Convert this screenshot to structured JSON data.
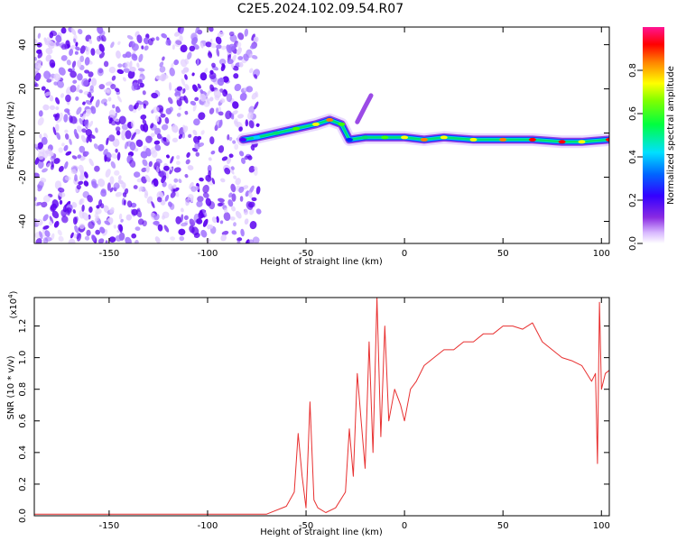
{
  "figure": {
    "title": "C2E5.2024.102.09.54.R07"
  },
  "chart_data": [
    {
      "type": "heatmap",
      "title": "",
      "xlabel": "Height of straight line (km)",
      "ylabel": "Frequency (Hz)",
      "xlim": [
        -188,
        104
      ],
      "ylim": [
        -50,
        48
      ],
      "x_ticks": [
        "-150",
        "-100",
        "-50",
        "0",
        "50",
        "100"
      ],
      "y_ticks": [
        "-40",
        "-20",
        "0",
        "20",
        "40"
      ],
      "colorbar": {
        "label": "Normalized spectral amplitude",
        "range": [
          0,
          1
        ],
        "ticks": [
          "0.0",
          "0.2",
          "0.4",
          "0.6",
          "0.8"
        ],
        "colormap": "rainbow"
      },
      "colormap_colors": [
        "#ffffff",
        "#e0c8ff",
        "#8a2be2",
        "#5500ff",
        "#0022ff",
        "#00d0ff",
        "#00e070",
        "#40ff00",
        "#ffff00",
        "#ff8000",
        "#ff0000",
        "#ff1493"
      ],
      "signal_ridge": [
        {
          "x": -82,
          "freq": -3,
          "amp": 0.3
        },
        {
          "x": -75,
          "freq": -2,
          "amp": 0.45
        },
        {
          "x": -65,
          "freq": 0,
          "amp": 0.55
        },
        {
          "x": -55,
          "freq": 2,
          "amp": 0.6
        },
        {
          "x": -45,
          "freq": 4,
          "amp": 0.7
        },
        {
          "x": -38,
          "freq": 6,
          "amp": 0.85
        },
        {
          "x": -32,
          "freq": 4,
          "amp": 0.6
        },
        {
          "x": -28,
          "freq": -3,
          "amp": 0.35
        },
        {
          "x": -20,
          "freq": -2,
          "amp": 0.5
        },
        {
          "x": -10,
          "freq": -2,
          "amp": 0.6
        },
        {
          "x": 0,
          "freq": -2,
          "amp": 0.75
        },
        {
          "x": 10,
          "freq": -3,
          "amp": 0.8
        },
        {
          "x": 20,
          "freq": -2,
          "amp": 0.75
        },
        {
          "x": 35,
          "freq": -3,
          "amp": 0.7
        },
        {
          "x": 50,
          "freq": -3,
          "amp": 0.85
        },
        {
          "x": 65,
          "freq": -3,
          "amp": 0.95
        },
        {
          "x": 80,
          "freq": -4,
          "amp": 0.9
        },
        {
          "x": 90,
          "freq": -4,
          "amp": 0.7
        },
        {
          "x": 104,
          "freq": -3,
          "amp": 0.9
        }
      ],
      "spur": [
        {
          "x": -24,
          "freq": 5
        },
        {
          "x": -20,
          "freq": 12
        },
        {
          "x": -17,
          "freq": 17
        }
      ],
      "noise_region": {
        "x_from": -188,
        "x_to": -80,
        "amp": 0.3
      }
    },
    {
      "type": "line",
      "title": "",
      "xlabel": "Height of straight line (km)",
      "ylabel": "SNR (10 * v/v)",
      "y_multiplier": "(x10",
      "y_multiplier_exp": "4",
      "y_multiplier_close": ")",
      "xlim": [
        -188,
        104
      ],
      "ylim": [
        0,
        1.38
      ],
      "x_ticks": [
        "-150",
        "-100",
        "-50",
        "0",
        "50",
        "100"
      ],
      "y_ticks": [
        "0.0",
        "0.2",
        "0.4",
        "0.6",
        "0.8",
        "1.0",
        "1.2"
      ],
      "series": [
        {
          "color": "#e83030",
          "x": [
            -188,
            -160,
            -130,
            -100,
            -80,
            -70,
            -60,
            -56,
            -54,
            -52,
            -50,
            -48,
            -46,
            -44,
            -40,
            -35,
            -30,
            -28,
            -26,
            -24,
            -22,
            -20,
            -18,
            -16,
            -14,
            -12,
            -10,
            -8,
            -5,
            -2,
            0,
            3,
            6,
            10,
            15,
            20,
            25,
            30,
            35,
            40,
            45,
            50,
            55,
            60,
            65,
            70,
            75,
            80,
            85,
            90,
            95,
            97,
            98,
            99,
            100,
            101,
            102,
            104
          ],
          "values": [
            0.01,
            0.01,
            0.01,
            0.01,
            0.01,
            0.01,
            0.06,
            0.15,
            0.52,
            0.25,
            0.05,
            0.72,
            0.1,
            0.05,
            0.02,
            0.05,
            0.15,
            0.55,
            0.25,
            0.9,
            0.6,
            0.3,
            1.1,
            0.4,
            1.38,
            0.5,
            1.2,
            0.6,
            0.8,
            0.7,
            0.6,
            0.8,
            0.85,
            0.95,
            1.0,
            1.05,
            1.05,
            1.1,
            1.1,
            1.15,
            1.15,
            1.2,
            1.2,
            1.18,
            1.22,
            1.1,
            1.05,
            1.0,
            0.98,
            0.95,
            0.85,
            0.9,
            0.33,
            1.35,
            0.8,
            0.85,
            0.9,
            0.92
          ]
        }
      ]
    }
  ]
}
